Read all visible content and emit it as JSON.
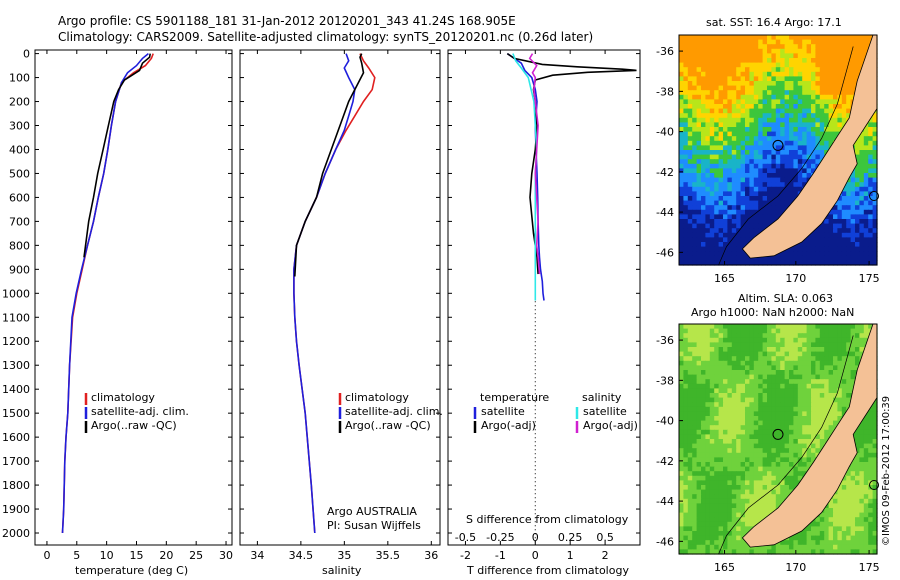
{
  "header": {
    "line1": "Argo profile: CS 5901188_181 31-Jan-2012 20120201_343 41.24S 168.905E",
    "line2": "Climatology: CARS2009. Satellite-adjusted climatology: synTS_20120201.nc (0.26d later)"
  },
  "colors": {
    "climatology": "#e02020",
    "satellite": "#1f1fdc",
    "argo": "#000000",
    "sat_salinity": "#2ee8e8",
    "argo_salinity": "#d020d0",
    "land": "#f4c196"
  },
  "depth_ticks": [
    "0",
    "100",
    "200",
    "300",
    "400",
    "500",
    "600",
    "700",
    "800",
    "900",
    "1000",
    "1100",
    "1200",
    "1300",
    "1400",
    "1500",
    "1600",
    "1700",
    "1800",
    "1900",
    "2000"
  ],
  "panels": {
    "temperature": {
      "xlabel": "temperature (deg C)",
      "xticks": [
        "0",
        "5",
        "10",
        "15",
        "20",
        "25",
        "30"
      ],
      "legend": [
        "climatology",
        "satellite-adj. clim.",
        "Argo(..raw -QC)"
      ]
    },
    "salinity": {
      "xlabel": "salinity",
      "xticks": [
        "34",
        "34.5",
        "35",
        "35.5",
        "36"
      ],
      "legend": [
        "climatology",
        "satellite-adj. clim.",
        "Argo(..raw -QC)"
      ],
      "credit1": "Argo AUSTRALIA",
      "credit2": "PI: Susan Wijffels"
    },
    "difference": {
      "xlabel": "T difference from climatology",
      "toplabel": "S difference from climatology",
      "xticks_T": [
        "-2",
        "-1",
        "0",
        "1",
        "2"
      ],
      "xticks_S": [
        "-0.5",
        "-0.25",
        "0",
        "0.25",
        "0.5"
      ],
      "legend_T_title": "temperature",
      "legend_S_title": "salinity",
      "legend_T": [
        "satellite",
        "Argo(-adj)"
      ],
      "legend_S": [
        "satellite",
        "Argo(-adj)"
      ]
    }
  },
  "maps": {
    "sst_title": "sat. SST: 16.4  Argo: 17.1",
    "sla_title1": "Altim. SLA: 0.063",
    "sla_title2": "Argo h1000: NaN h2000: NaN",
    "lat_ticks": [
      "-36",
      "-38",
      "-40",
      "-42",
      "-44",
      "-46"
    ],
    "lon_ticks": [
      "165",
      "170",
      "175"
    ],
    "stamp": "©IMOS 09-Feb-2012 17:00:39"
  },
  "chart_data": [
    {
      "type": "line",
      "title": "",
      "xlabel": "temperature (deg C)",
      "ylabel": "",
      "xlim": [
        -2,
        31
      ],
      "ylim": [
        2050,
        0
      ],
      "series": [
        {
          "name": "climatology",
          "x": [
            17.8,
            17.5,
            16.5,
            14.5,
            12.5,
            11.5,
            10.8,
            10.2,
            9.5,
            8.6,
            7.8,
            6.8,
            5.9,
            5.0,
            4.3,
            3.8,
            3.5,
            3.2,
            3.0,
            2.8,
            2.6
          ],
          "y": [
            0,
            20,
            50,
            80,
            120,
            200,
            300,
            400,
            500,
            600,
            700,
            800,
            900,
            1000,
            1100,
            1300,
            1500,
            1600,
            1700,
            1900,
            2000
          ]
        },
        {
          "name": "satellite-adj. clim.",
          "x": [
            17.0,
            16.0,
            15.0,
            13.5,
            12.5,
            11.5,
            10.8,
            10.2,
            9.5,
            8.6,
            7.8,
            6.8,
            5.8,
            4.9,
            4.2,
            3.8,
            3.5,
            3.2,
            3.0,
            2.8,
            2.6
          ],
          "y": [
            0,
            20,
            50,
            80,
            120,
            200,
            300,
            400,
            500,
            600,
            700,
            800,
            900,
            1000,
            1100,
            1300,
            1500,
            1600,
            1700,
            1900,
            2000
          ]
        },
        {
          "name": "Argo(..raw -QC)",
          "x": [
            17.3,
            17.2,
            16.0,
            15.5,
            13.0,
            12.0,
            11.2,
            10.3,
            9.4,
            8.5,
            7.8,
            7.0,
            6.2
          ],
          "y": [
            0,
            15,
            40,
            70,
            110,
            150,
            200,
            300,
            400,
            500,
            600,
            700,
            850
          ]
        }
      ]
    },
    {
      "type": "line",
      "title": "",
      "xlabel": "salinity",
      "ylabel": "",
      "xlim": [
        33.8,
        36.1
      ],
      "ylim": [
        2050,
        0
      ],
      "series": [
        {
          "name": "climatology",
          "x": [
            35.18,
            35.22,
            35.28,
            35.35,
            35.32,
            35.22,
            35.12,
            35.02,
            34.9,
            34.78,
            34.68,
            34.55,
            34.45,
            34.42,
            34.42,
            34.43,
            34.45,
            34.48,
            34.55,
            34.62,
            34.66
          ],
          "y": [
            0,
            30,
            60,
            100,
            150,
            200,
            260,
            320,
            400,
            500,
            600,
            700,
            800,
            900,
            1000,
            1100,
            1200,
            1300,
            1500,
            1800,
            2000
          ]
        },
        {
          "name": "satellite-adj. clim.",
          "x": [
            35.02,
            35.05,
            35.0,
            35.05,
            35.12,
            35.1,
            35.05,
            35.0,
            34.9,
            34.78,
            34.68,
            34.55,
            34.45,
            34.42,
            34.42,
            34.43,
            34.45,
            34.48,
            34.55,
            34.62,
            34.66
          ],
          "y": [
            0,
            30,
            60,
            100,
            150,
            200,
            260,
            320,
            400,
            500,
            600,
            700,
            800,
            900,
            1000,
            1100,
            1200,
            1300,
            1500,
            1800,
            2000
          ]
        },
        {
          "name": "Argo(..raw -QC)",
          "x": [
            35.2,
            35.18,
            35.2,
            35.22,
            35.12,
            35.05,
            34.95,
            34.85,
            34.75,
            34.68,
            34.55,
            34.45,
            34.43
          ],
          "y": [
            0,
            15,
            40,
            80,
            150,
            200,
            300,
            400,
            500,
            600,
            700,
            800,
            930
          ]
        }
      ]
    },
    {
      "type": "line",
      "title": "",
      "xlabel": "T difference from climatology",
      "ylabel": "",
      "xlim": [
        -2.5,
        3.0
      ],
      "ylim": [
        2050,
        0
      ],
      "series": [
        {
          "name": "satellite",
          "x": [
            -0.8,
            -0.6,
            -0.4,
            -0.3,
            -0.1,
            0.0,
            0.05,
            0.0,
            0.02,
            0.05,
            0.07,
            0.08,
            0.1,
            0.12,
            0.15,
            0.2,
            0.22,
            0.25
          ],
          "y": [
            0,
            20,
            40,
            70,
            100,
            150,
            200,
            300,
            400,
            500,
            600,
            700,
            800,
            850,
            900,
            950,
            1000,
            1030
          ]
        },
        {
          "name": "Argo(-adj)",
          "x": [
            -0.8,
            -0.6,
            0.2,
            1.2,
            2.5,
            2.9,
            1.5,
            0.5,
            0.0,
            -0.05,
            0.0,
            0.05,
            0.0,
            -0.1,
            -0.15,
            -0.05,
            0.05,
            0.08
          ],
          "y": [
            0,
            20,
            45,
            55,
            65,
            70,
            78,
            90,
            110,
            150,
            200,
            300,
            400,
            500,
            600,
            750,
            850,
            920
          ]
        }
      ]
    },
    {
      "type": "line",
      "title": "",
      "xlabel": "S difference from climatology",
      "ylabel": "",
      "xlim": [
        -0.625,
        0.75
      ],
      "ylim": [
        2050,
        0
      ],
      "series": [
        {
          "name": "satellite",
          "x": [
            -0.16,
            -0.14,
            -0.1,
            -0.05,
            -0.03,
            -0.01,
            0.0,
            0.01,
            0.0,
            0.0,
            0.0,
            0.0,
            0.0,
            0.0,
            0.0
          ],
          "y": [
            0,
            30,
            60,
            100,
            150,
            200,
            300,
            400,
            500,
            600,
            700,
            800,
            900,
            1000,
            1030
          ]
        },
        {
          "name": "Argo(-adj)",
          "x": [
            -0.02,
            -0.04,
            0.01,
            -0.02,
            0.0,
            -0.01,
            0.0,
            0.02,
            0.01,
            0.0,
            0.01,
            0.02,
            0.01,
            0.02,
            0.03
          ],
          "y": [
            0,
            20,
            50,
            80,
            100,
            150,
            200,
            300,
            400,
            500,
            600,
            700,
            800,
            850,
            920
          ]
        }
      ]
    }
  ]
}
